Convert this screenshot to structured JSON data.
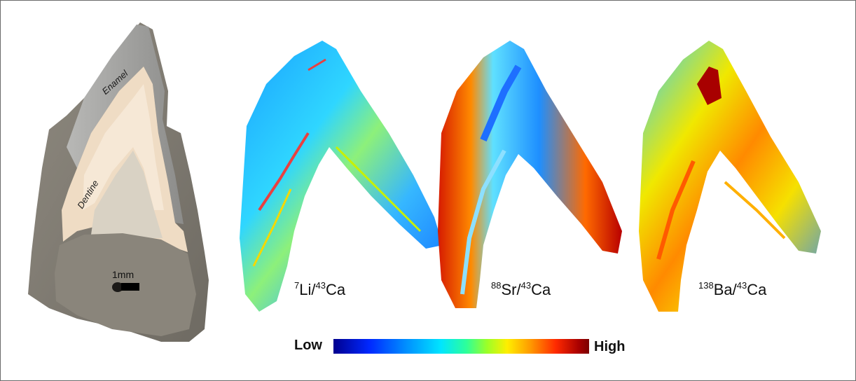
{
  "photo": {
    "enamel_label": "Enamel",
    "dentine_label": "Dentine",
    "scale_label": "1mm"
  },
  "maps": [
    {
      "numerator_mass": "7",
      "numerator": "Li",
      "denominator_mass": "43",
      "denominator": "Ca"
    },
    {
      "numerator_mass": "88",
      "numerator": "Sr",
      "denominator_mass": "43",
      "denominator": "Ca"
    },
    {
      "numerator_mass": "138",
      "numerator": "Ba",
      "denominator_mass": "43",
      "denominator": "Ca"
    }
  ],
  "colorbar": {
    "low_label": "Low",
    "high_label": "High",
    "colors": [
      "#00008f",
      "#0028ff",
      "#008cff",
      "#00e5ff",
      "#2dff9a",
      "#9bff28",
      "#ffee00",
      "#ff9a00",
      "#ff2a00",
      "#7a0000"
    ]
  }
}
